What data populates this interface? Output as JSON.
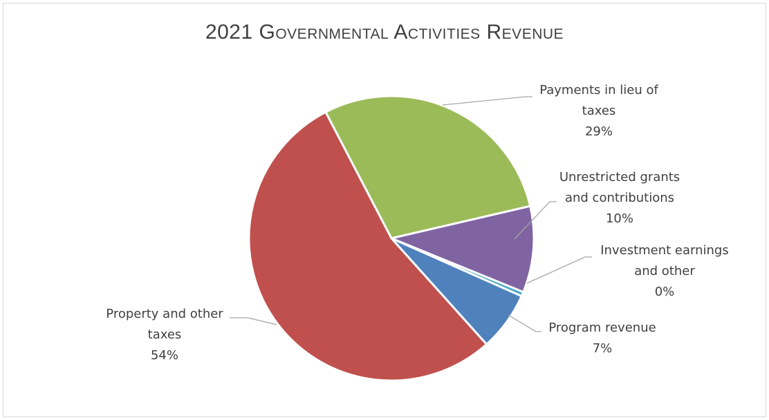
{
  "chart_data": {
    "type": "pie",
    "title": "2021 Governmental Activities Revenue",
    "slices": [
      {
        "name": "Property and other taxes",
        "label_lines": [
          "Property and other",
          "taxes"
        ],
        "percent_label": "54%",
        "value": 54.0,
        "color": "#c0504d"
      },
      {
        "name": "Payments in lieu of taxes",
        "label_lines": [
          "Payments in lieu of",
          "taxes"
        ],
        "percent_label": "29%",
        "value": 29.0,
        "color": "#9bbb59"
      },
      {
        "name": "Unrestricted grants and contributions",
        "label_lines": [
          "Unrestricted grants",
          "and contributions"
        ],
        "percent_label": "10%",
        "value": 9.8,
        "color": "#8064a2"
      },
      {
        "name": "Investment earnings and other",
        "label_lines": [
          "Investment earnings",
          "and other"
        ],
        "percent_label": "0%",
        "value": 0.5,
        "color": "#4bacc6"
      },
      {
        "name": "Program revenue",
        "label_lines": [
          "Program revenue"
        ],
        "percent_label": "7%",
        "value": 6.7,
        "color": "#4f81bd"
      }
    ]
  }
}
